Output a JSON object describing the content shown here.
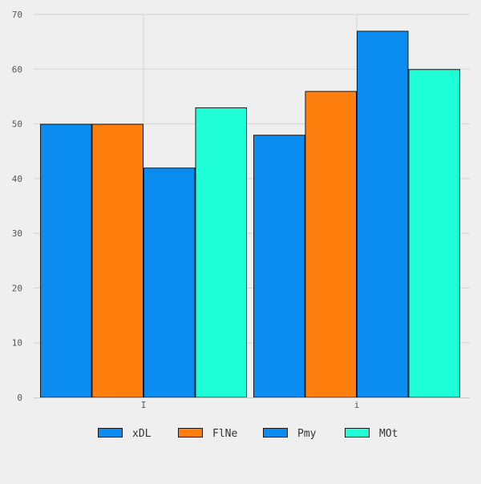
{
  "chart_data": {
    "type": "bar",
    "categories": [
      "I",
      "i"
    ],
    "series": [
      {
        "name": "xDL",
        "color": "#0a8cf0",
        "values": [
          50,
          48
        ]
      },
      {
        "name": "FlNe",
        "color": "#ff7f0e",
        "values": [
          50,
          56
        ]
      },
      {
        "name": "Pmy",
        "color": "#0a8cf0",
        "values": [
          42,
          67
        ]
      },
      {
        "name": "MOt",
        "color": "#1effd8",
        "values": [
          53,
          60
        ]
      }
    ],
    "ylim": [
      0,
      70
    ],
    "yticks": [
      0,
      10,
      20,
      30,
      40,
      50,
      60,
      70
    ],
    "grid": true,
    "legend_position": "bottom",
    "background": "#efefef"
  }
}
